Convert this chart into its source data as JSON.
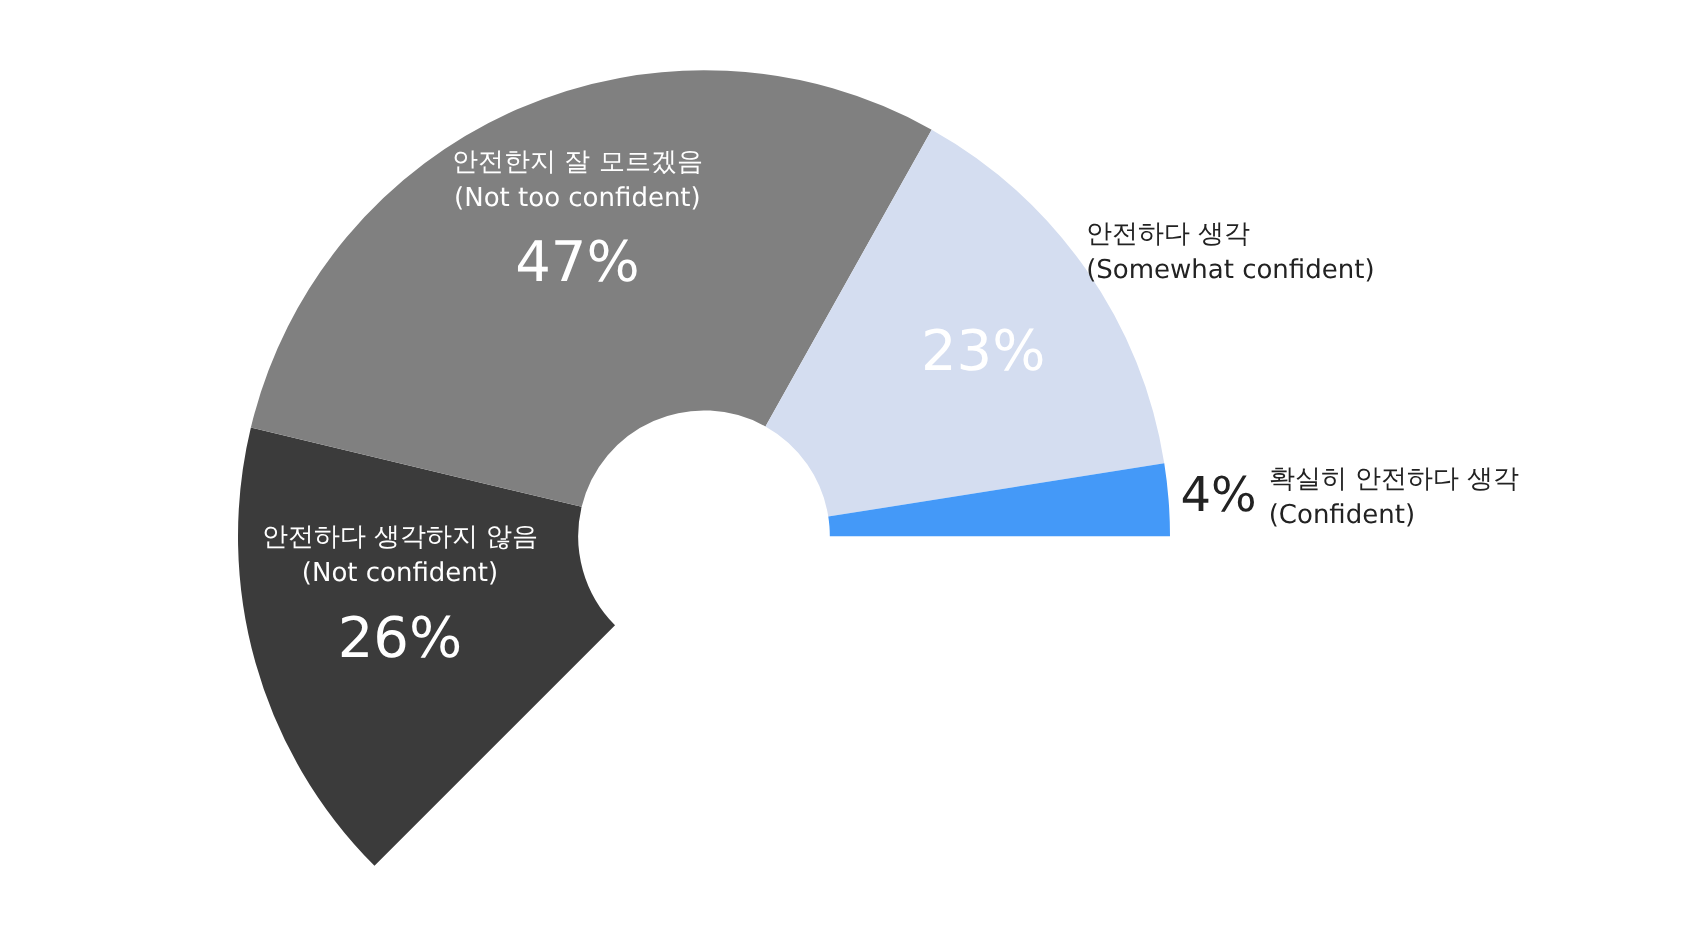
{
  "chart_data": {
    "type": "donut",
    "categories": [
      "안전하다 생각하지 않음\n(Not confident)",
      "안전한지 잘 모르겠음\n(Not too confident)",
      "안전하다 생각\n(Somewhat confident)",
      "확실히 안전하다 생각\n(Confident)"
    ],
    "values": [
      26,
      47,
      23,
      4
    ],
    "colors": [
      "#3b3b3b",
      "#808080",
      "#d4ddf0",
      "#4499f8"
    ],
    "value_labels": [
      "26%",
      "47%",
      "23%",
      "4%"
    ],
    "legend": false
  }
}
